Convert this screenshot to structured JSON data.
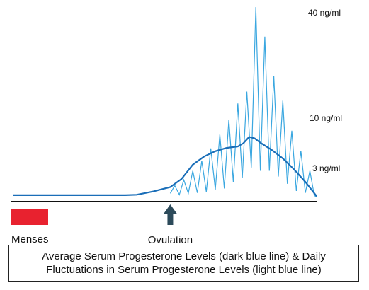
{
  "chart_data": {
    "type": "line",
    "title": "",
    "xlabel": "",
    "ylabel": "",
    "y_tick_labels": [
      "40 ng/ml",
      "10 ng/ml",
      "3 ng/ml"
    ],
    "y_tick_values": [
      40,
      10,
      3
    ],
    "annotations": {
      "menses_label": "Menses",
      "ovulation_label": "Ovulation"
    },
    "caption": {
      "line1": "Average Serum Progesterone Levels (dark blue line) & Daily",
      "line2": "Fluctuations in Serum Progesterone Levels (light blue line)"
    },
    "x_range": [
      1,
      28
    ],
    "y_range": [
      0,
      40
    ],
    "menses_days": [
      1,
      4
    ],
    "ovulation_day": 15,
    "series": [
      {
        "name": "Average Serum Progesterone Levels",
        "color": "#1a6eb8",
        "x": [
          1,
          11,
          12,
          13.5,
          15,
          16,
          17,
          18,
          19,
          20,
          21,
          21.5,
          22,
          22.5,
          23,
          24,
          25,
          26,
          27,
          28
        ],
        "y": [
          0.6,
          0.6,
          0.7,
          1.4,
          2.3,
          4.0,
          7.0,
          8.7,
          9.8,
          10.5,
          10.8,
          11.5,
          12.8,
          12.5,
          11.6,
          10.1,
          8.3,
          6.0,
          3.4,
          0.4
        ]
      },
      {
        "name": "Daily Fluctuations in Serum Progesterone Levels",
        "color": "#3aa7e0",
        "x": [
          15,
          15.4,
          15.8,
          16.2,
          16.6,
          17,
          17.4,
          17.8,
          18.2,
          18.6,
          19,
          19.4,
          19.8,
          20.2,
          20.6,
          21,
          21.4,
          21.8,
          22.2,
          22.6,
          23,
          23.4,
          23.8,
          24.2,
          24.6,
          25,
          25.4,
          25.8,
          26.2,
          26.6,
          27,
          27.4,
          27.8,
          28
        ],
        "y": [
          1.0,
          2.6,
          0.7,
          3.8,
          1.0,
          5.7,
          1.1,
          7.8,
          1.3,
          10.4,
          1.8,
          13.3,
          2.0,
          16.4,
          3.4,
          19.8,
          4.2,
          22.3,
          6.4,
          40.0,
          5.7,
          33.8,
          5.7,
          25.5,
          4.5,
          20.4,
          3.0,
          14.1,
          1.5,
          9.9,
          1.1,
          5.7,
          0.5,
          0.3
        ]
      }
    ],
    "baseline_color": "#111111",
    "menses_color": "#e8222f",
    "arrow_color": "#2c4a5a"
  }
}
